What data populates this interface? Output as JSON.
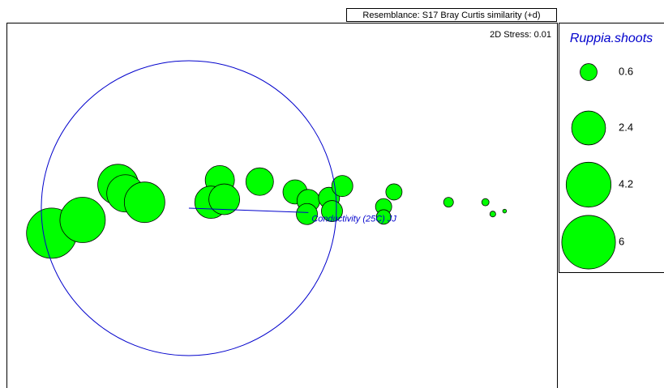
{
  "chart_data": {
    "type": "bubble",
    "header": "Resemblance: S17 Bray Curtis similarity (+d)",
    "stress": "2D Stress: 0.01",
    "color": "#00ff00",
    "xlim": [
      -1.236,
      2.495
    ],
    "ylim": [
      -1.22,
      1.258
    ],
    "x": [
      -0.93,
      -0.72,
      -0.48,
      -0.43,
      -0.3,
      0.21,
      0.15,
      0.24,
      0.48,
      0.72,
      0.81,
      0.8,
      0.95,
      0.97,
      1.04,
      1.32,
      1.32,
      1.39,
      1.76,
      2.01,
      2.06,
      2.14
    ],
    "y": [
      -0.17,
      -0.08,
      0.16,
      0.1,
      0.04,
      0.19,
      0.04,
      0.06,
      0.18,
      0.11,
      0.05,
      -0.04,
      0.07,
      -0.02,
      0.15,
      0.01,
      -0.06,
      0.11,
      0.04,
      0.04,
      -0.04,
      -0.02
    ],
    "sizes": [
      5.27,
      4.3,
      3.43,
      2.9,
      3.43,
      1.78,
      2.19,
      1.98,
      1.59,
      1.23,
      1.08,
      0.93,
      0.93,
      0.93,
      0.93,
      0.55,
      0.44,
      0.55,
      0.2,
      0.11,
      0.07,
      0.03
    ],
    "vector": {
      "label": "Conductivity (25C) JJ",
      "x": 0.81,
      "y": -0.03,
      "color": "#0000cc"
    },
    "size_legend": {
      "title": "Ruppia.shoots",
      "values": [
        0.6,
        2.4,
        4.2,
        6
      ]
    }
  }
}
